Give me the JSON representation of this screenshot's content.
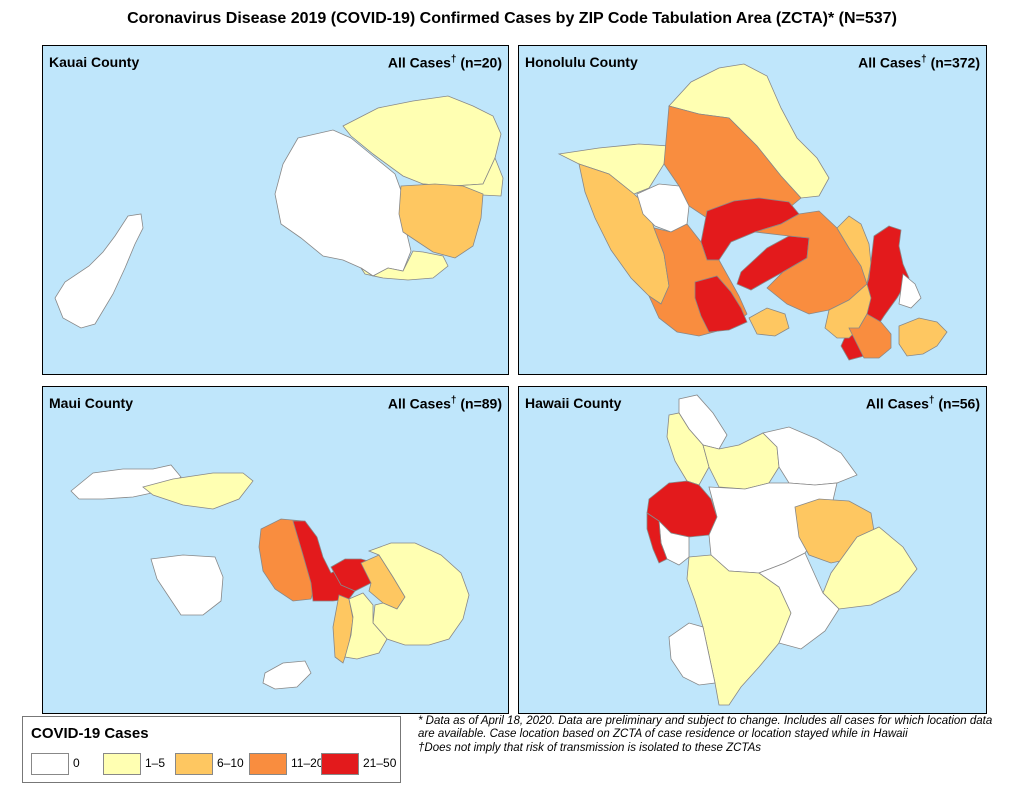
{
  "title": "Coronavirus Disease 2019 (COVID-19) Confirmed Cases by ZIP Code Tabulation Area (ZCTA)* (N=537)",
  "colors": {
    "ocean": "#bfe6fb",
    "c0": "#ffffff",
    "c1_5": "#ffffb2",
    "c6_10": "#fec761",
    "c11_20": "#f98d3f",
    "c21_50": "#e31a1c"
  },
  "panels": {
    "kauai": {
      "name": "Kauai County",
      "cases_label": "All Cases",
      "dagger": "†",
      "n": "(n=20)"
    },
    "honolulu": {
      "name": "Honolulu County",
      "cases_label": "All Cases",
      "dagger": "†",
      "n": "(n=372)"
    },
    "maui": {
      "name": "Maui County",
      "cases_label": "All Cases",
      "dagger": "†",
      "n": "(n=89)"
    },
    "hawaii": {
      "name": "Hawaii County",
      "cases_label": "All Cases",
      "dagger": "†",
      "n": "(n=56)"
    }
  },
  "legend": {
    "title": "COVID-19 Cases",
    "items": [
      {
        "label": "0",
        "color": "#ffffff"
      },
      {
        "label": "1–5",
        "color": "#ffffb2"
      },
      {
        "label": "6–10",
        "color": "#fec761"
      },
      {
        "label": "11–20",
        "color": "#f98d3f"
      },
      {
        "label": "21–50",
        "color": "#e31a1c"
      }
    ]
  },
  "notes": {
    "note1": "* Data as of April 18, 2020. Data are preliminary and subject to change. Includes all cases for which location data are available. Case location based on ZCTA of case residence or location stayed while in Hawaii",
    "note2": "†Does not imply that risk of transmission is isolated to these ZCTAs"
  }
}
